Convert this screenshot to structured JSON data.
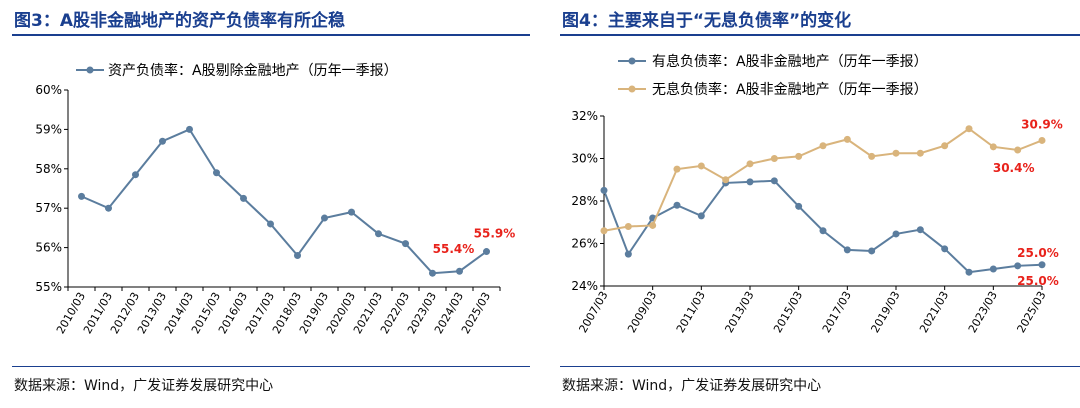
{
  "figures": [
    {
      "title": "图3：A股非金融地产的资产负债率有所企稳",
      "source": "数据来源：Wind，广发证券发展研究中心"
    },
    {
      "title": "图4：主要来自于“无息负债率”的变化",
      "source": "数据来源：Wind，广发证券发展研究中心"
    }
  ],
  "chart_data": [
    {
      "type": "line",
      "title": "",
      "xlabel": "",
      "ylabel": "",
      "categories": [
        "2010/03",
        "2011/03",
        "2012/03",
        "2013/03",
        "2014/03",
        "2015/03",
        "2016/03",
        "2017/03",
        "2018/03",
        "2019/03",
        "2020/03",
        "2021/03",
        "2022/03",
        "2023/03",
        "2024/03",
        "2025/03"
      ],
      "y_ticks": [
        "55%",
        "56%",
        "57%",
        "58%",
        "59%",
        "60%"
      ],
      "ylim": [
        55,
        60
      ],
      "grid": false,
      "legend_position": "top-left",
      "series": [
        {
          "name": "资产负债率：A股剔除金融地产（历年一季报）",
          "color": "#5b7d9e",
          "values": [
            57.3,
            57.0,
            57.85,
            58.7,
            59.0,
            57.9,
            57.25,
            56.6,
            55.8,
            56.75,
            56.9,
            56.35,
            56.1,
            55.35,
            55.4,
            55.9
          ]
        }
      ],
      "annotations": [
        {
          "text": "55.4%",
          "index": 14,
          "color": "#e8221b"
        },
        {
          "text": "55.9%",
          "index": 15,
          "color": "#e8221b"
        }
      ]
    },
    {
      "type": "line",
      "title": "",
      "xlabel": "",
      "ylabel": "",
      "x": [
        "2007/03",
        "2008/03",
        "2009/03",
        "2010/03",
        "2011/03",
        "2012/03",
        "2013/03",
        "2014/03",
        "2015/03",
        "2016/03",
        "2017/03",
        "2018/03",
        "2019/03",
        "2020/03",
        "2021/03",
        "2022/03",
        "2023/03",
        "2024/03",
        "2025/03"
      ],
      "x_tick_labels": [
        "2007/03",
        "2009/03",
        "2011/03",
        "2013/03",
        "2015/03",
        "2017/03",
        "2019/03",
        "2021/03",
        "2023/03",
        "2025/03"
      ],
      "y_ticks": [
        "24%",
        "26%",
        "28%",
        "30%",
        "32%"
      ],
      "ylim": [
        24,
        32
      ],
      "grid": false,
      "legend_position": "top-left",
      "series": [
        {
          "name": "有息负债率：A股非金融地产（历年一季报）",
          "color": "#5b7d9e",
          "values": [
            28.5,
            25.5,
            27.2,
            27.8,
            27.3,
            28.85,
            28.9,
            28.95,
            27.75,
            26.6,
            25.7,
            25.65,
            26.45,
            26.65,
            25.75,
            24.65,
            24.8,
            24.95,
            25.0
          ]
        },
        {
          "name": "无息负债率：A股非金融地产（历年一季报）",
          "color": "#d9b47c",
          "values": [
            26.6,
            26.8,
            26.85,
            29.5,
            29.65,
            29.0,
            29.75,
            30.0,
            30.1,
            30.6,
            30.9,
            30.1,
            30.25,
            30.25,
            30.6,
            31.4,
            30.55,
            30.4,
            30.85
          ]
        }
      ],
      "annotations": [
        {
          "text": "30.9%",
          "series": 1,
          "index": 18,
          "color": "#e8221b"
        },
        {
          "text": "30.4%",
          "series": 1,
          "index": 17,
          "color": "#e8221b"
        },
        {
          "text": "25.0%",
          "series": 0,
          "index": 18,
          "color": "#e8221b"
        },
        {
          "text": "25.0%",
          "series": 0,
          "index": 18,
          "color": "#e8221b"
        }
      ]
    }
  ]
}
